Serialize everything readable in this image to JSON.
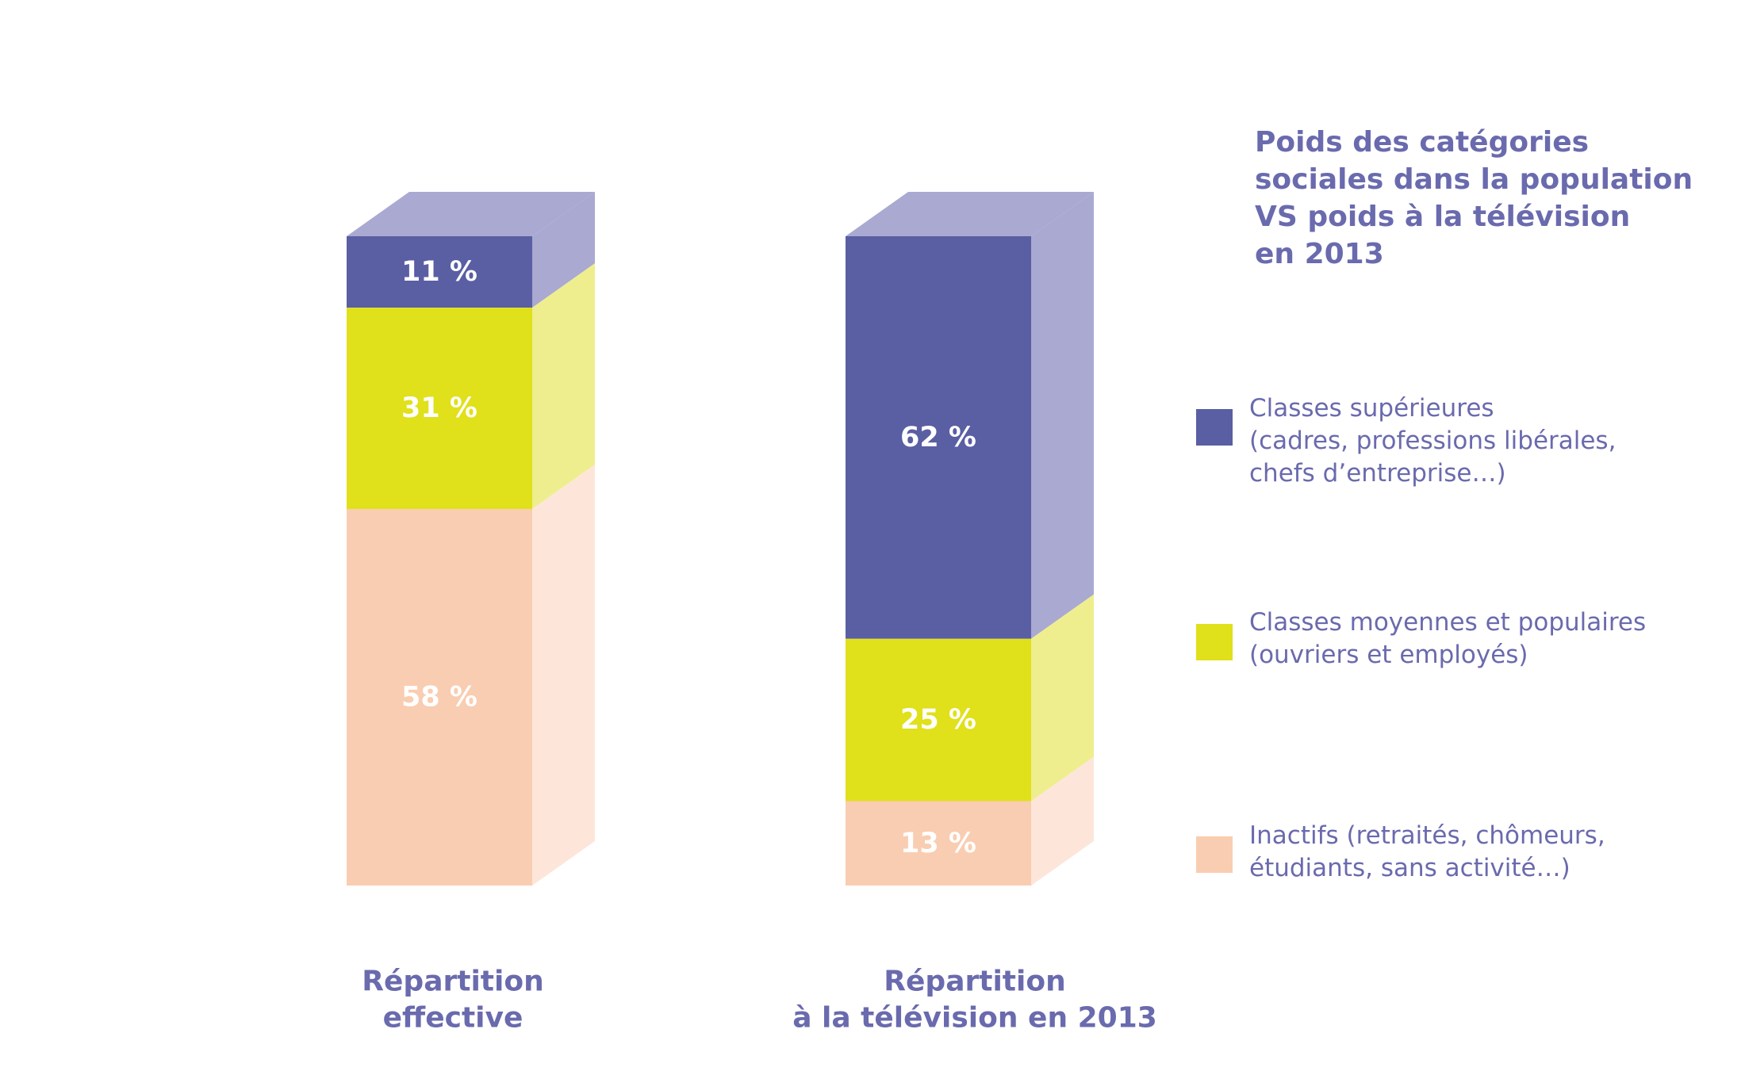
{
  "title": {
    "lines": [
      "Poids des catégories",
      "sociales dans la population",
      "VS poids à la télévision",
      "en 2013"
    ]
  },
  "legend": [
    {
      "lines": [
        "Classes supérieures",
        "(cadres, professions libérales,",
        "chefs d’entreprise…)"
      ],
      "color": "#5a5ea3"
    },
    {
      "lines": [
        "Classes moyennes et populaires",
        "(ouvriers et employés)"
      ],
      "color": "#e0e01b"
    },
    {
      "lines": [
        "Inactifs (retraités, chômeurs,",
        "étudiants, sans activité…)"
      ],
      "color": "#f9cdb1"
    }
  ],
  "chart_data": {
    "type": "bar",
    "stacked": true,
    "style": "3d",
    "categories": [
      [
        "Répartition",
        "effective"
      ],
      [
        "Répartition",
        "à la télévision en 2013"
      ]
    ],
    "series": [
      {
        "name": "Classes supérieures",
        "values": [
          11,
          62
        ],
        "labels": [
          "11 %",
          "62 %"
        ],
        "color": "#5a5ea3",
        "side_color": "#a9a9d2"
      },
      {
        "name": "Classes moyennes et populaires",
        "values": [
          31,
          25
        ],
        "labels": [
          "31 %",
          "25 %"
        ],
        "color": "#e0e01b",
        "side_color": "#eeee8e"
      },
      {
        "name": "Inactifs",
        "values": [
          58,
          13
        ],
        "labels": [
          "58 %",
          "13 %"
        ],
        "color": "#f9cdb1",
        "side_color": "#fde6d9"
      }
    ],
    "ylim": [
      0,
      100
    ],
    "unit": "%",
    "grid": false,
    "legend_position": "right"
  }
}
